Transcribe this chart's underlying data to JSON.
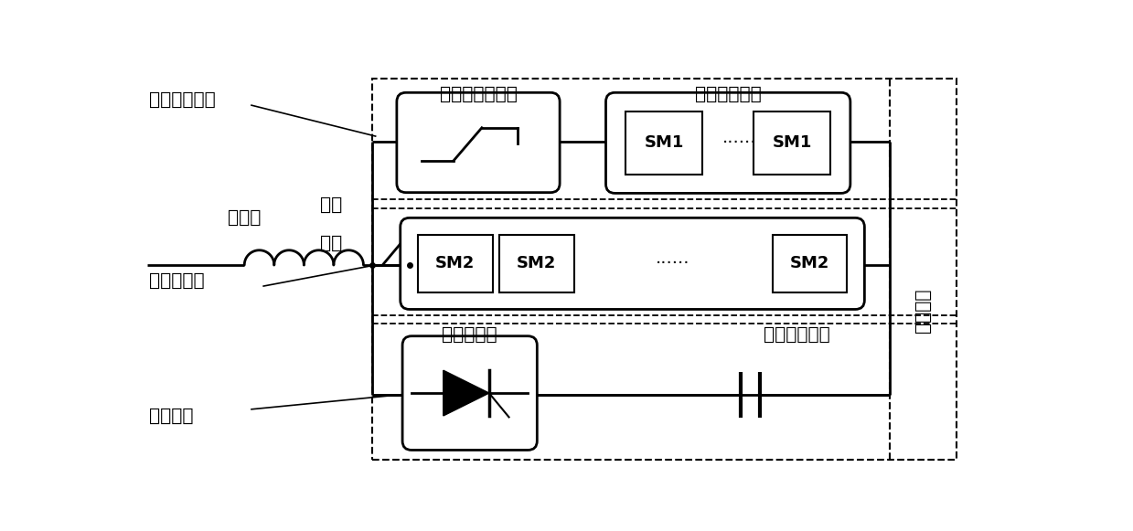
{
  "bg": "#ffffff",
  "lc": "#000000",
  "labels": {
    "normal_branch": "正常通流支路",
    "reactor": "电抗器",
    "isolator_line1": "隔离",
    "isolator_line2": "开关",
    "main_transfer": "主转移支路",
    "break_branch": "断流支路",
    "ufms": "超快速机械开关",
    "load_transfer": "负载转移开关",
    "main_breaker": "主断路器",
    "thyristor": "晶闸管阀组",
    "capacitor": "集中式电容器",
    "sm1": "SM1",
    "sm2": "SM2"
  }
}
